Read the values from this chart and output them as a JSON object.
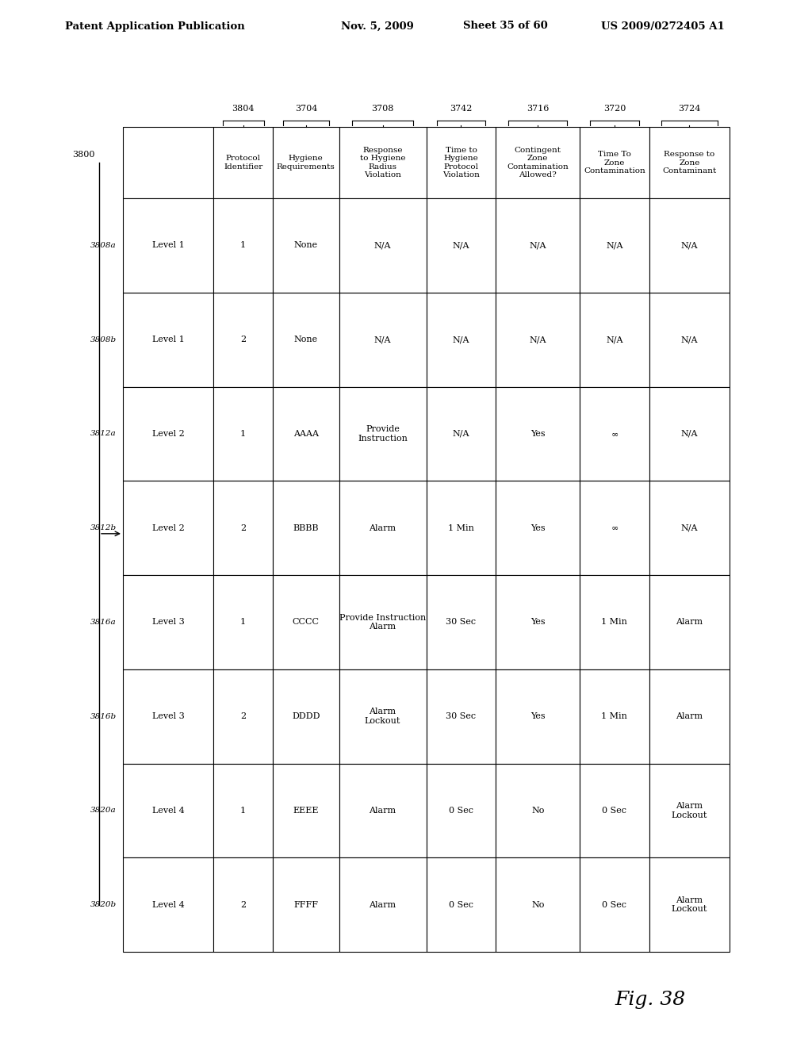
{
  "header_top": "Patent Application Publication    Nov. 5, 2009   Sheet 35 of 60    US 2009/0272405 A1",
  "figure_label": "Fig. 38",
  "background_color": "#ffffff",
  "table": {
    "col_headers": [
      "",
      "Protocol\nIdentifier",
      "Hygiene\nRequirements",
      "Response\nto Hygiene\nRadius\nViolation",
      "Time to\nHygiene\nProtocol\nViolation",
      "Contingent\nZone\nContamination\nAllowed?",
      "Time To\nZone\nContamination",
      "Response to\nZone\nContaminant"
    ],
    "col_ids": [
      "",
      "3804",
      "3704",
      "3708",
      "3742",
      "3716",
      "3720",
      "3724"
    ],
    "col_widths_rel": [
      1.3,
      0.85,
      0.95,
      1.25,
      1.0,
      1.2,
      1.0,
      1.15
    ],
    "rows": [
      [
        "Level 1",
        "1",
        "None",
        "N/A",
        "N/A",
        "N/A",
        "N/A",
        "N/A"
      ],
      [
        "Level 1",
        "2",
        "None",
        "N/A",
        "N/A",
        "N/A",
        "N/A",
        "N/A"
      ],
      [
        "Level 2",
        "1",
        "AAAA",
        "Provide\nInstruction",
        "N/A",
        "Yes",
        "∞",
        "N/A"
      ],
      [
        "Level 2",
        "2",
        "BBBB",
        "Alarm",
        "1 Min",
        "Yes",
        "∞",
        "N/A"
      ],
      [
        "Level 3",
        "1",
        "CCCC",
        "Provide Instruction\nAlarm",
        "30 Sec",
        "Yes",
        "1 Min",
        "Alarm"
      ],
      [
        "Level 3",
        "2",
        "DDDD",
        "Alarm\nLockout",
        "30 Sec",
        "Yes",
        "1 Min",
        "Alarm"
      ],
      [
        "Level 4",
        "1",
        "EEEE",
        "Alarm",
        "0 Sec",
        "No",
        "0 Sec",
        "Alarm\nLockout"
      ],
      [
        "Level 4",
        "2",
        "FFFF",
        "Alarm",
        "0 Sec",
        "No",
        "0 Sec",
        "Alarm\nLockout"
      ]
    ],
    "row_ids": [
      "3808a",
      "3808b",
      "3812a",
      "3812b",
      "3816a",
      "3816b",
      "3820a",
      "3820b"
    ],
    "arrow_label": "3800"
  }
}
